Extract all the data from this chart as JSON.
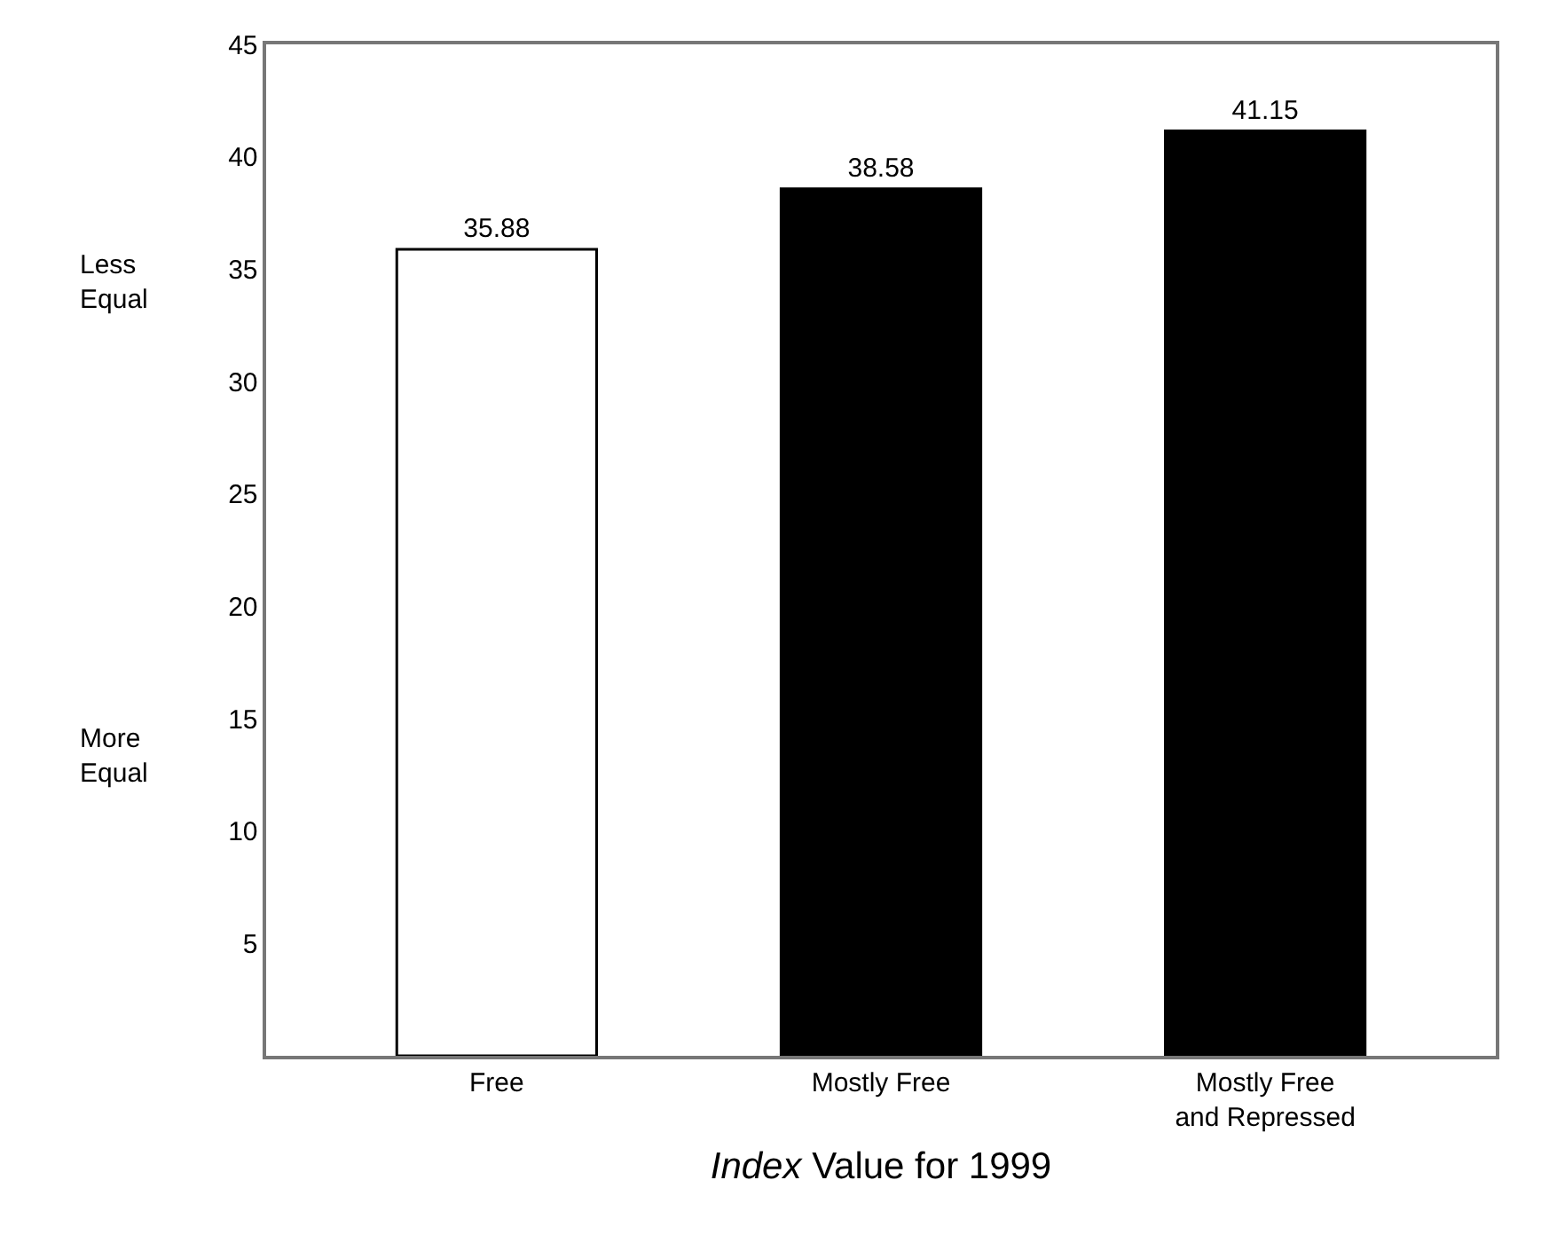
{
  "chart_data": {
    "type": "bar",
    "xlabel": "Index Value for 1999",
    "categories": [
      "Free",
      "Mostly Free",
      "Mostly Free\nand Repressed"
    ],
    "values": [
      35.88,
      38.58,
      41.15
    ],
    "colors": [
      "#ffffff",
      "#000000",
      "#000000"
    ],
    "ylim": [
      0,
      45
    ],
    "yticks": [
      5,
      10,
      15,
      20,
      25,
      30,
      35,
      40,
      45
    ],
    "data_labels": true,
    "annotations": [
      "Less\nEqual",
      "More\nEqual"
    ]
  }
}
